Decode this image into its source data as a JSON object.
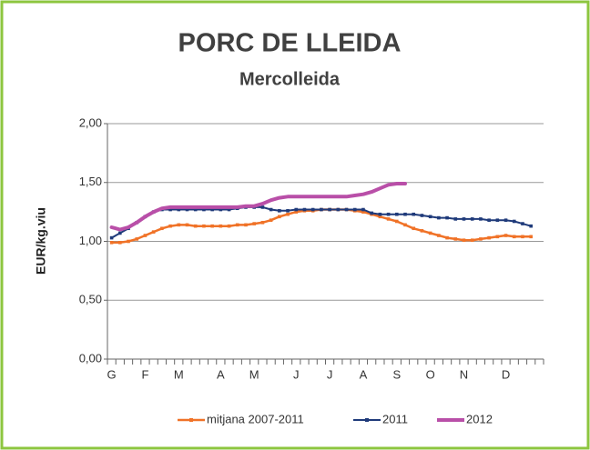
{
  "chart_data": {
    "type": "line",
    "title": "PORC DE LLEIDA",
    "subtitle": "Mercolleida",
    "y_label": "EUR/kg.viu",
    "categories": [
      "G",
      null,
      null,
      null,
      "F",
      null,
      null,
      null,
      "M",
      null,
      null,
      null,
      null,
      "A",
      null,
      null,
      null,
      "M",
      null,
      null,
      null,
      null,
      "J",
      null,
      null,
      null,
      "J",
      null,
      null,
      null,
      "A",
      null,
      null,
      null,
      "S",
      null,
      null,
      null,
      "O",
      null,
      null,
      null,
      "N",
      null,
      null,
      null,
      null,
      "D",
      null,
      null,
      null,
      null
    ],
    "ylim": [
      0,
      2
    ],
    "yticks": [
      {
        "value": 0,
        "label": "0,00"
      },
      {
        "value": 0.5,
        "label": "0,50"
      },
      {
        "value": 1,
        "label": "1,00"
      },
      {
        "value": 1.5,
        "label": "1,50"
      },
      {
        "value": 2,
        "label": "2,00"
      }
    ],
    "grid": true,
    "legend": "bottom",
    "series": [
      {
        "name": "mitjana 2007-2011",
        "color": "#f07227",
        "width": 2.5,
        "markers": true,
        "values": [
          0.99,
          0.99,
          1.0,
          1.02,
          1.05,
          1.08,
          1.11,
          1.13,
          1.14,
          1.14,
          1.13,
          1.13,
          1.13,
          1.13,
          1.13,
          1.14,
          1.14,
          1.15,
          1.16,
          1.18,
          1.21,
          1.23,
          1.25,
          1.26,
          1.26,
          1.27,
          1.27,
          1.27,
          1.27,
          1.26,
          1.25,
          1.23,
          1.21,
          1.19,
          1.17,
          1.14,
          1.11,
          1.09,
          1.07,
          1.05,
          1.03,
          1.02,
          1.01,
          1.01,
          1.02,
          1.03,
          1.04,
          1.05,
          1.04,
          1.04,
          1.04,
          null
        ]
      },
      {
        "name": "2011",
        "color": "#1f3a7a",
        "width": 2,
        "markers": true,
        "values": [
          1.03,
          1.07,
          1.11,
          1.16,
          1.21,
          1.25,
          1.27,
          1.27,
          1.27,
          1.27,
          1.27,
          1.27,
          1.27,
          1.27,
          1.27,
          1.28,
          1.29,
          1.29,
          1.29,
          1.27,
          1.26,
          1.26,
          1.27,
          1.27,
          1.27,
          1.27,
          1.27,
          1.27,
          1.27,
          1.27,
          1.27,
          1.24,
          1.23,
          1.23,
          1.23,
          1.23,
          1.23,
          1.22,
          1.21,
          1.2,
          1.2,
          1.19,
          1.19,
          1.19,
          1.19,
          1.18,
          1.18,
          1.18,
          1.17,
          1.15,
          1.13,
          null
        ]
      },
      {
        "name": "2012",
        "color": "#b94fa8",
        "width": 4,
        "markers": false,
        "values": [
          1.12,
          1.1,
          1.12,
          1.16,
          1.21,
          1.25,
          1.28,
          1.29,
          1.29,
          1.29,
          1.29,
          1.29,
          1.29,
          1.29,
          1.29,
          1.29,
          1.3,
          1.3,
          1.32,
          1.35,
          1.37,
          1.38,
          1.38,
          1.38,
          1.38,
          1.38,
          1.38,
          1.38,
          1.38,
          1.39,
          1.4,
          1.42,
          1.45,
          1.48,
          1.49,
          1.49,
          null,
          null,
          null,
          null,
          null,
          null,
          null,
          null,
          null,
          null,
          null,
          null,
          null,
          null,
          null,
          null
        ]
      }
    ]
  }
}
